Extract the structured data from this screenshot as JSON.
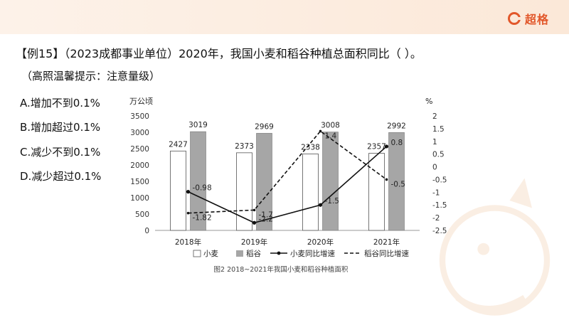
{
  "brand": {
    "name": "超格"
  },
  "question": {
    "text": "【例15】（2023成都事业单位）2020年，我国小麦和稻谷种植总面积同比（    ）。",
    "hint": "（高照温馨提示：注意量级）"
  },
  "options": [
    {
      "label": "A.增加不到0.1%"
    },
    {
      "label": "B.增加超过0.1%"
    },
    {
      "label": "C.减少不到0.1%"
    },
    {
      "label": "D.减少超过0.1%"
    }
  ],
  "chart_data": {
    "type": "bar",
    "title": "图2  2018~2021年我国小麦和稻谷种植面积",
    "ylabel": "万公顷",
    "y2label": "%",
    "categories": [
      "2018年",
      "2019年",
      "2020年",
      "2021年"
    ],
    "ylim": [
      0,
      3500
    ],
    "yticks": [
      0,
      500,
      1000,
      1500,
      2000,
      2500,
      3000,
      3500
    ],
    "y2lim": [
      -2.5,
      2
    ],
    "y2ticks": [
      2,
      1.5,
      1,
      0.5,
      0,
      -0.5,
      -1,
      -1.5,
      -2,
      -2.5
    ],
    "series": [
      {
        "name": "小麦",
        "type": "bar",
        "values": [
          2427,
          2373,
          2338,
          2357
        ],
        "labels": [
          "2427",
          "2373",
          "2338",
          "2357"
        ],
        "color": "#ffffff"
      },
      {
        "name": "稻谷",
        "type": "bar",
        "values": [
          3019,
          2969,
          3008,
          2992
        ],
        "labels": [
          "3019",
          "2969",
          "3008",
          "2992"
        ],
        "color": "#a6a6a6"
      },
      {
        "name": "小麦同比增速",
        "type": "line",
        "axis": "right",
        "values": [
          -0.98,
          -2.2,
          -1.5,
          0.8
        ],
        "labels": [
          "-0.98",
          "-2.2",
          "-1.5",
          "0.8"
        ],
        "style": "solid"
      },
      {
        "name": "稻谷同比增速",
        "type": "line",
        "axis": "right",
        "values": [
          -1.82,
          -1.7,
          1.4,
          -0.5
        ],
        "labels": [
          "-1.82",
          "-1.7",
          "1.4",
          "-0.5"
        ],
        "style": "dashed"
      }
    ],
    "grid": false,
    "legend_position": "bottom"
  }
}
